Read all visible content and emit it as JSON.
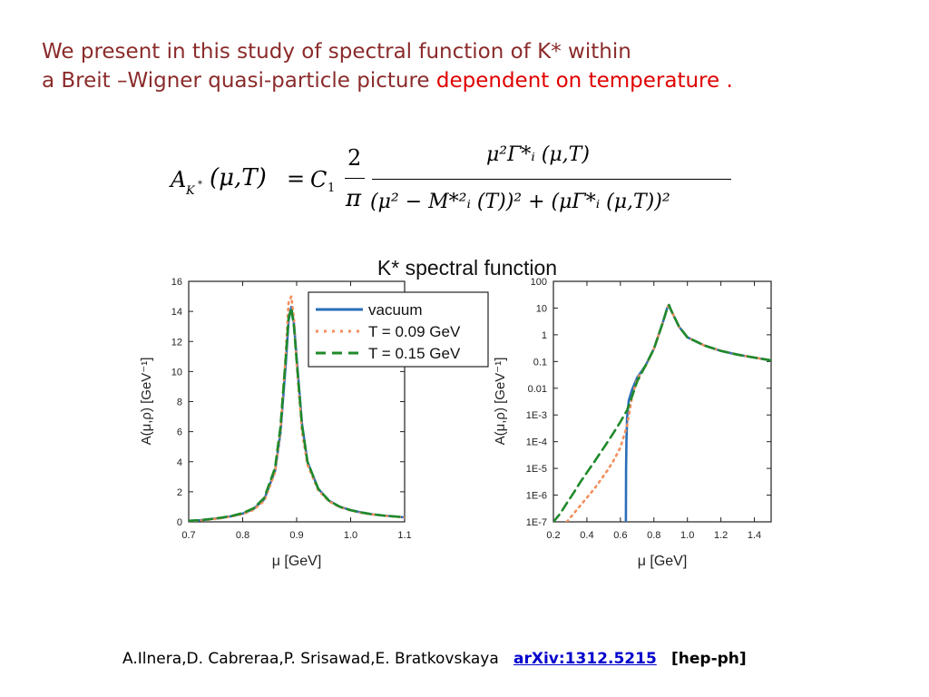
{
  "slide": {
    "line1": "We present in this study of spectral function of K* within",
    "line2_plain": "a Breit –Wigner quasi-particle  picture ",
    "line2_highlight": "dependent on temperature .",
    "reference_authors": "A.Ilnera,D. Cabreraa,P. Srisawad,E. Bratkovskaya",
    "reference_link": "arXiv:1312.5215",
    "reference_tag": "[hep-ph]"
  },
  "formula": {
    "lhs_A": "A",
    "lhs_sub": "K",
    "lhs_sub_sup": "*",
    "lhs_args": "(μ,T)",
    "equals": "=",
    "C": "C",
    "C_sub": "1",
    "two": "2",
    "pi": "π",
    "numerator": "μ²Γ*ᵢ (μ,T)",
    "denominator": "(μ² − M*²ᵢ (T))² + (μΓ*ᵢ (μ,T))²"
  },
  "colors": {
    "title": "#8b2b2b",
    "highlight": "#e00000",
    "vacuum": "#2a6ebb",
    "t009": "#f28e5c",
    "t015": "#1f8a2a",
    "link": "#0000cc"
  },
  "chart_data": [
    {
      "type": "line",
      "title": "K* spectral function",
      "xlabel": "μ [GeV]",
      "ylabel": "A(μ,ρ) [GeV⁻¹]",
      "xlim": [
        0.7,
        1.1
      ],
      "ylim": [
        0,
        16
      ],
      "xticks": [
        "0.7",
        "0.8",
        "0.9",
        "1.0",
        "1.1"
      ],
      "yticks": [
        "0",
        "2",
        "4",
        "6",
        "8",
        "10",
        "12",
        "14",
        "16"
      ],
      "legend_position": "top-right",
      "series": [
        {
          "name": "vacuum",
          "style": "solid",
          "x": [
            0.7,
            0.72,
            0.74,
            0.76,
            0.78,
            0.8,
            0.82,
            0.84,
            0.86,
            0.87,
            0.88,
            0.885,
            0.89,
            0.895,
            0.9,
            0.91,
            0.92,
            0.94,
            0.96,
            0.98,
            1.0,
            1.02,
            1.04,
            1.06,
            1.08,
            1.1
          ],
          "y": [
            0.06,
            0.1,
            0.18,
            0.26,
            0.38,
            0.55,
            0.85,
            1.5,
            3.4,
            5.9,
            10.6,
            13.4,
            14.3,
            13.2,
            10.9,
            6.5,
            4.0,
            2.2,
            1.4,
            1.0,
            0.78,
            0.62,
            0.5,
            0.42,
            0.36,
            0.3
          ]
        },
        {
          "name": "T = 0.09 GeV",
          "style": "dotted",
          "x": [
            0.7,
            0.72,
            0.74,
            0.76,
            0.78,
            0.8,
            0.82,
            0.84,
            0.86,
            0.87,
            0.88,
            0.885,
            0.89,
            0.895,
            0.9,
            0.91,
            0.92,
            0.94,
            0.96,
            0.98,
            1.0,
            1.02,
            1.04,
            1.06,
            1.08,
            1.1
          ],
          "y": [
            0.05,
            0.09,
            0.16,
            0.24,
            0.36,
            0.52,
            0.8,
            1.4,
            3.3,
            6.0,
            11.3,
            14.6,
            15.0,
            13.5,
            10.5,
            6.0,
            3.8,
            2.1,
            1.35,
            0.98,
            0.76,
            0.6,
            0.49,
            0.41,
            0.35,
            0.3
          ]
        },
        {
          "name": "T = 0.15 GeV",
          "style": "dashed",
          "x": [
            0.7,
            0.72,
            0.74,
            0.76,
            0.78,
            0.8,
            0.82,
            0.84,
            0.86,
            0.87,
            0.88,
            0.885,
            0.89,
            0.895,
            0.9,
            0.91,
            0.92,
            0.94,
            0.96,
            0.98,
            1.0,
            1.02,
            1.04,
            1.06,
            1.08,
            1.1
          ],
          "y": [
            0.07,
            0.11,
            0.19,
            0.28,
            0.4,
            0.58,
            0.9,
            1.6,
            3.6,
            6.3,
            11.0,
            13.6,
            14.2,
            13.0,
            10.7,
            6.4,
            4.0,
            2.2,
            1.4,
            1.0,
            0.78,
            0.62,
            0.5,
            0.42,
            0.36,
            0.3
          ]
        }
      ]
    },
    {
      "type": "line",
      "xlabel": "μ [GeV]",
      "ylabel": "A(μ,ρ) [GeV⁻¹]",
      "xlim": [
        0.2,
        1.5
      ],
      "ylim": [
        1e-07,
        100
      ],
      "yscale": "log",
      "xticks": [
        "0.2",
        "0.4",
        "0.6",
        "0.8",
        "1.0",
        "1.2",
        "1.4"
      ],
      "yticks": [
        "100",
        "10",
        "1",
        "0.1",
        "0.01",
        "1E-3",
        "1E-4",
        "1E-5",
        "1E-6",
        "1E-7"
      ],
      "series": [
        {
          "name": "vacuum",
          "style": "solid",
          "x": [
            0.633,
            0.634,
            0.636,
            0.64,
            0.65,
            0.67,
            0.7,
            0.75,
            0.8,
            0.85,
            0.88,
            0.89,
            0.9,
            0.95,
            1.0,
            1.1,
            1.2,
            1.3,
            1.4,
            1.5
          ],
          "y": [
            1e-07,
            1e-05,
            0.0001,
            0.0008,
            0.0035,
            0.009,
            0.025,
            0.07,
            0.3,
            2.5,
            10,
            13,
            9,
            2,
            0.8,
            0.4,
            0.25,
            0.18,
            0.14,
            0.11
          ]
        },
        {
          "name": "T = 0.09 GeV",
          "style": "dotted",
          "x": [
            0.28,
            0.32,
            0.36,
            0.4,
            0.44,
            0.48,
            0.52,
            0.56,
            0.6,
            0.64,
            0.67,
            0.7,
            0.75,
            0.8,
            0.85,
            0.88,
            0.89,
            0.9,
            0.95,
            1.0,
            1.1,
            1.2,
            1.3,
            1.4,
            1.5
          ],
          "y": [
            1e-07,
            2e-07,
            4e-07,
            8e-07,
            1.6e-06,
            3.5e-06,
            8e-06,
            2e-05,
            6e-05,
            0.0004,
            0.005,
            0.022,
            0.068,
            0.3,
            2.5,
            10,
            13.5,
            9,
            2,
            0.8,
            0.4,
            0.25,
            0.18,
            0.14,
            0.11
          ]
        },
        {
          "name": "T = 0.15 GeV",
          "style": "dashed",
          "x": [
            0.2,
            0.24,
            0.28,
            0.32,
            0.36,
            0.4,
            0.44,
            0.48,
            0.52,
            0.56,
            0.6,
            0.64,
            0.67,
            0.7,
            0.75,
            0.8,
            0.85,
            0.88,
            0.89,
            0.9,
            0.95,
            1.0,
            1.1,
            1.2,
            1.3,
            1.4,
            1.5
          ],
          "y": [
            1e-07,
            2e-07,
            5e-07,
            1.2e-06,
            3e-06,
            7e-06,
            1.6e-05,
            3.8e-05,
            9e-05,
            0.00022,
            0.00055,
            0.0015,
            0.005,
            0.018,
            0.07,
            0.3,
            2.5,
            10,
            13,
            9,
            2,
            0.8,
            0.4,
            0.25,
            0.18,
            0.14,
            0.11
          ]
        }
      ]
    }
  ]
}
